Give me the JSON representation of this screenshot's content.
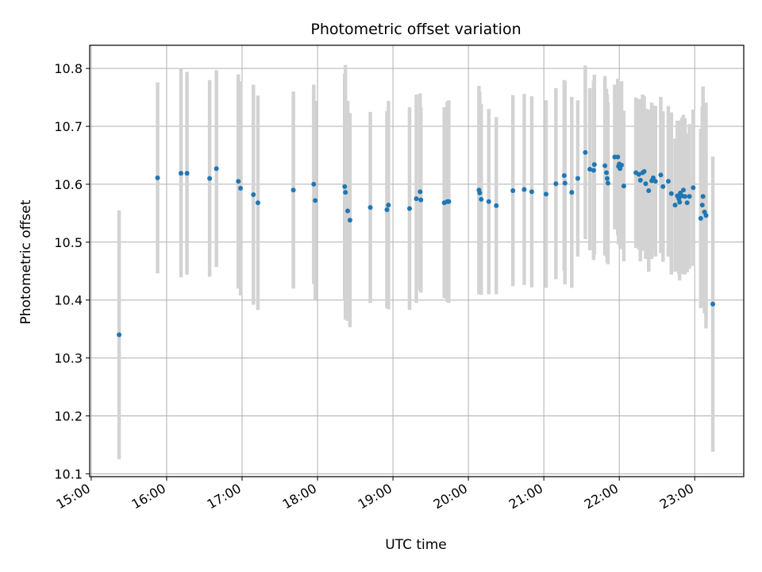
{
  "chart_data": {
    "type": "scatter",
    "title": "Photometric offset variation",
    "xlabel": "UTC time",
    "ylabel": "Photometric offset",
    "x_tick_labels": [
      "15:00",
      "16:00",
      "17:00",
      "18:00",
      "19:00",
      "20:00",
      "21:00",
      "22:00",
      "23:00"
    ],
    "x_tick_hours": [
      15,
      16,
      17,
      18,
      19,
      20,
      21,
      22,
      23
    ],
    "y_ticks": [
      10.1,
      10.2,
      10.3,
      10.4,
      10.5,
      10.6,
      10.7,
      10.8
    ],
    "y_tick_labels": [
      "10.1",
      "10.2",
      "10.3",
      "10.4",
      "10.5",
      "10.6",
      "10.7",
      "10.8"
    ],
    "xlim_hours": [
      14.98,
      23.65
    ],
    "ylim": [
      10.095,
      10.84
    ],
    "grid": true,
    "point_color": "#1f77b4",
    "errorbar_color": "#d3d3d3",
    "series": [
      {
        "x_hours": [
          15.37,
          15.88,
          16.19,
          16.27,
          16.57,
          16.66,
          16.95,
          16.98,
          17.15,
          17.21,
          17.68,
          17.95,
          17.97,
          18.36,
          18.37,
          18.4,
          18.43,
          18.7,
          18.92,
          18.94,
          19.22,
          19.31,
          19.36,
          19.37,
          19.68,
          19.72,
          19.74,
          20.14,
          20.15,
          20.17,
          20.27,
          20.37,
          20.59,
          20.74,
          20.84,
          21.03,
          21.16,
          21.27,
          21.28,
          21.37,
          21.45,
          21.55,
          21.61,
          21.66,
          21.67,
          21.81,
          21.83,
          21.84,
          21.85,
          21.94,
          21.98,
          21.99,
          22.0,
          22.01,
          22.03,
          22.06,
          22.22,
          22.26,
          22.28,
          22.31,
          22.33,
          22.35,
          22.39,
          22.43,
          22.45,
          22.48,
          22.55,
          22.58,
          22.65,
          22.69,
          22.74,
          22.77,
          22.79,
          22.8,
          22.81,
          22.83,
          22.85,
          22.87,
          22.9,
          22.93,
          22.98,
          23.08,
          23.1,
          23.11,
          23.13,
          23.15,
          23.24
        ],
        "y": [
          10.34,
          10.611,
          10.619,
          10.619,
          10.61,
          10.627,
          10.605,
          10.593,
          10.582,
          10.568,
          10.59,
          10.6,
          10.572,
          10.596,
          10.586,
          10.554,
          10.538,
          10.56,
          10.556,
          10.564,
          10.558,
          10.575,
          10.587,
          10.573,
          10.568,
          10.57,
          10.57,
          10.59,
          10.585,
          10.574,
          10.57,
          10.563,
          10.589,
          10.591,
          10.587,
          10.583,
          10.601,
          10.615,
          10.602,
          10.586,
          10.61,
          10.655,
          10.626,
          10.624,
          10.634,
          10.632,
          10.62,
          10.61,
          10.602,
          10.647,
          10.647,
          10.631,
          10.635,
          10.627,
          10.633,
          10.597,
          10.62,
          10.617,
          10.607,
          10.62,
          10.622,
          10.601,
          10.589,
          10.606,
          10.611,
          10.605,
          10.616,
          10.596,
          10.605,
          10.584,
          10.564,
          10.58,
          10.575,
          10.569,
          10.585,
          10.58,
          10.59,
          10.579,
          10.568,
          10.579,
          10.594,
          10.541,
          10.564,
          10.579,
          10.552,
          10.546,
          10.393
        ],
        "yerr": [
          0.215,
          0.165,
          0.18,
          0.175,
          0.17,
          0.17,
          0.185,
          0.185,
          0.19,
          0.185,
          0.17,
          0.172,
          0.172,
          0.195,
          0.22,
          0.19,
          0.185,
          0.165,
          0.17,
          0.18,
          0.175,
          0.18,
          0.17,
          0.16,
          0.165,
          0.173,
          0.175,
          0.18,
          0.175,
          0.165,
          0.16,
          0.153,
          0.165,
          0.165,
          0.165,
          0.162,
          0.165,
          0.165,
          0.175,
          0.165,
          0.135,
          0.15,
          0.14,
          0.155,
          0.155,
          0.155,
          0.145,
          0.145,
          0.14,
          0.125,
          0.135,
          0.135,
          0.13,
          0.135,
          0.145,
          0.13,
          0.13,
          0.13,
          0.14,
          0.135,
          0.13,
          0.13,
          0.14,
          0.135,
          0.125,
          0.13,
          0.135,
          0.13,
          0.13,
          0.14,
          0.115,
          0.13,
          0.13,
          0.135,
          0.125,
          0.135,
          0.13,
          0.135,
          0.12,
          0.125,
          0.135,
          0.155,
          0.17,
          0.19,
          0.175,
          0.195,
          0.255
        ]
      }
    ]
  }
}
